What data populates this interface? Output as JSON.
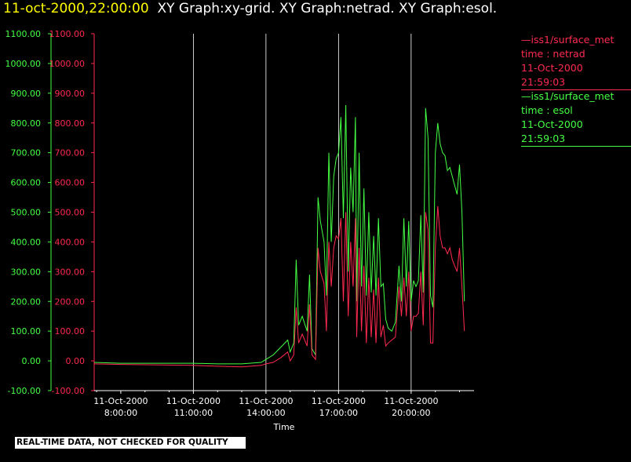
{
  "header": {
    "timestamp": "11-oct-2000,22:00:00",
    "graphs": "XY Graph:xy-grid.  XY Graph:netrad.  XY Graph:esol."
  },
  "legend": [
    {
      "source": "—iss1/surface_met",
      "variable": "time : netrad",
      "date": "11-Oct-2000",
      "time": "21:59:03",
      "color": "#ff2a50"
    },
    {
      "source": "—iss1/surface_met",
      "variable": "time : esol",
      "date": "11-Oct-2000",
      "time": "21:59:03",
      "color": "#44ff44"
    }
  ],
  "notice": "REAL-TIME DATA, NOT CHECKED FOR QUALITY",
  "chart_data": {
    "type": "line",
    "xlabel": "Time",
    "xlim_hours": [
      6.9,
      22.6
    ],
    "x_ticks": [
      {
        "date": "11-Oct-2000",
        "time": "8:00:00",
        "hour": 8
      },
      {
        "date": "11-Oct-2000",
        "time": "11:00:00",
        "hour": 11
      },
      {
        "date": "11-Oct-2000",
        "time": "14:00:00",
        "hour": 14
      },
      {
        "date": "11-Oct-2000",
        "time": "17:00:00",
        "hour": 17
      },
      {
        "date": "11-Oct-2000",
        "time": "20:00:00",
        "hour": 20
      }
    ],
    "ylim": [
      -100,
      1100
    ],
    "y_ticks": [
      "-100.00",
      "0.00",
      "100.00",
      "200.00",
      "300.00",
      "400.00",
      "500.00",
      "600.00",
      "700.00",
      "800.00",
      "900.00",
      "1000.00",
      "1100.00"
    ],
    "vertical_grid": true,
    "series": [
      {
        "name": "esol",
        "color": "#44ff44",
        "x": [
          6.9,
          8.0,
          10.0,
          11.0,
          12.0,
          13.0,
          13.8,
          14.0,
          14.3,
          14.6,
          14.9,
          15.0,
          15.15,
          15.25,
          15.35,
          15.5,
          15.7,
          15.8,
          15.9,
          16.05,
          16.15,
          16.25,
          16.4,
          16.5,
          16.6,
          16.7,
          16.8,
          16.9,
          17.0,
          17.1,
          17.2,
          17.3,
          17.4,
          17.5,
          17.6,
          17.7,
          17.75,
          17.85,
          17.95,
          18.05,
          18.15,
          18.25,
          18.35,
          18.45,
          18.55,
          18.65,
          18.75,
          18.85,
          18.95,
          19.05,
          19.2,
          19.35,
          19.5,
          19.6,
          19.7,
          19.8,
          19.9,
          20.0,
          20.1,
          20.2,
          20.3,
          20.4,
          20.5,
          20.6,
          20.7,
          20.8,
          20.9,
          21.0,
          21.1,
          21.2,
          21.3,
          21.4,
          21.5,
          21.6,
          21.7,
          21.8,
          21.9,
          22.0,
          22.1,
          22.2
        ],
        "y": [
          -5,
          -8,
          -8,
          -8,
          -10,
          -10,
          -5,
          5,
          20,
          45,
          70,
          30,
          60,
          340,
          120,
          150,
          100,
          290,
          40,
          20,
          550,
          470,
          400,
          220,
          700,
          400,
          620,
          680,
          700,
          820,
          480,
          860,
          300,
          650,
          500,
          820,
          200,
          700,
          250,
          580,
          220,
          500,
          230,
          420,
          220,
          480,
          250,
          260,
          140,
          110,
          100,
          130,
          320,
          200,
          480,
          250,
          470,
          200,
          270,
          250,
          270,
          490,
          230,
          850,
          750,
          220,
          180,
          700,
          800,
          730,
          700,
          690,
          640,
          650,
          620,
          590,
          560,
          660,
          500,
          200
        ]
      },
      {
        "name": "netrad",
        "color": "#ff2a50",
        "x": [
          6.9,
          8.0,
          10.0,
          11.0,
          12.0,
          13.0,
          13.8,
          14.0,
          14.3,
          14.6,
          14.9,
          15.0,
          15.15,
          15.25,
          15.35,
          15.5,
          15.7,
          15.8,
          15.9,
          16.05,
          16.15,
          16.25,
          16.4,
          16.5,
          16.6,
          16.7,
          16.8,
          16.9,
          17.0,
          17.1,
          17.2,
          17.3,
          17.4,
          17.5,
          17.6,
          17.7,
          17.75,
          17.85,
          17.95,
          18.05,
          18.15,
          18.25,
          18.35,
          18.45,
          18.55,
          18.65,
          18.75,
          18.85,
          18.95,
          19.05,
          19.2,
          19.35,
          19.5,
          19.6,
          19.7,
          19.8,
          19.9,
          20.0,
          20.1,
          20.2,
          20.3,
          20.4,
          20.5,
          20.6,
          20.7,
          20.8,
          20.9,
          21.0,
          21.1,
          21.2,
          21.3,
          21.4,
          21.5,
          21.6,
          21.7,
          21.8,
          21.9,
          22.0,
          22.1,
          22.2
        ],
        "y": [
          -10,
          -12,
          -14,
          -15,
          -18,
          -20,
          -15,
          -10,
          -5,
          10,
          30,
          0,
          20,
          180,
          60,
          90,
          50,
          190,
          20,
          5,
          380,
          300,
          260,
          100,
          400,
          250,
          380,
          420,
          410,
          480,
          200,
          500,
          150,
          400,
          250,
          480,
          80,
          380,
          100,
          320,
          60,
          280,
          80,
          240,
          60,
          280,
          80,
          120,
          50,
          60,
          70,
          80,
          250,
          150,
          280,
          150,
          300,
          100,
          150,
          150,
          160,
          300,
          120,
          500,
          440,
          60,
          60,
          380,
          520,
          420,
          380,
          380,
          360,
          380,
          340,
          320,
          300,
          380,
          250,
          100
        ]
      }
    ]
  }
}
